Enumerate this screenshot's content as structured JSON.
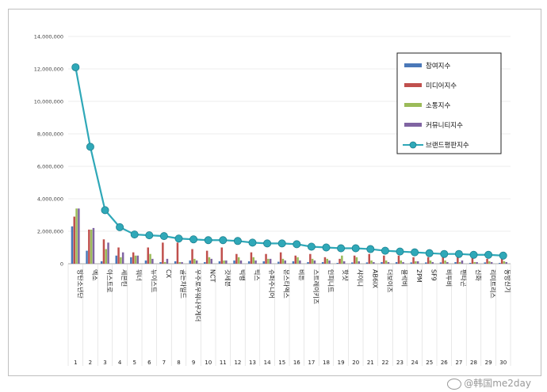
{
  "watermark": "@韩国me2day",
  "colors": {
    "participation": "#4a78b8",
    "media": "#c0504d",
    "communication": "#9bbb59",
    "community": "#8064a2",
    "brand": "#2fa8b8"
  },
  "chart_data": {
    "type": "bar",
    "title": "",
    "xlabel": "",
    "ylabel": "",
    "ylim": [
      0,
      14000000
    ],
    "yticks": [
      "0",
      "2,000,000",
      "4,000,000",
      "6,000,000",
      "8,000,000",
      "10,000,000",
      "12,000,000",
      "14,000,000"
    ],
    "categories": [
      "방탄소년단",
      "엑소",
      "아스트로",
      "세븐틴",
      "워너",
      "뉴이스트",
      "CX",
      "골든차일드",
      "우주로우워나우게더",
      "NCT",
      "갓세븐",
      "빅뱅",
      "빅스",
      "슈퍼주니어",
      "몬스타엑스",
      "비튼",
      "스트레이키즈",
      "인피니트",
      "핫샷",
      "샤이니",
      "AB6IX",
      "더보이즈",
      "블락비",
      "2PM",
      "SF9",
      "비투비",
      "펜타곤",
      "신화",
      "리미트리스",
      "동방신기"
    ],
    "indices": [
      "1",
      "2",
      "3",
      "4",
      "5",
      "6",
      "7",
      "8",
      "9",
      "10",
      "11",
      "12",
      "13",
      "14",
      "15",
      "16",
      "17",
      "18",
      "19",
      "20",
      "21",
      "22",
      "23",
      "24",
      "25",
      "26",
      "27",
      "28",
      "29",
      "30"
    ],
    "legend_position": "top-right",
    "series": [
      {
        "name": "참여지수",
        "type": "bar",
        "values": [
          2300000,
          800000,
          150000,
          500000,
          400000,
          200000,
          100000,
          150000,
          200000,
          100000,
          150000,
          200000,
          150000,
          150000,
          120000,
          150000,
          100000,
          100000,
          50000,
          80000,
          80000,
          100000,
          100000,
          80000,
          80000,
          80000,
          100000,
          50000,
          80000,
          50000
        ]
      },
      {
        "name": "미디어지수",
        "type": "bar",
        "values": [
          2900000,
          2100000,
          1500000,
          1000000,
          700000,
          1000000,
          1300000,
          1300000,
          900000,
          800000,
          1000000,
          600000,
          700000,
          600000,
          700000,
          500000,
          600000,
          400000,
          300000,
          500000,
          600000,
          500000,
          500000,
          400000,
          400000,
          400000,
          400000,
          400000,
          300000,
          300000
        ]
      },
      {
        "name": "소통지수",
        "type": "bar",
        "values": [
          3400000,
          2100000,
          900000,
          400000,
          500000,
          600000,
          100000,
          100000,
          300000,
          400000,
          200000,
          400000,
          400000,
          300000,
          300000,
          400000,
          300000,
          300000,
          500000,
          400000,
          200000,
          200000,
          200000,
          150000,
          200000,
          200000,
          100000,
          100000,
          150000,
          150000
        ]
      },
      {
        "name": "커뮤니티지수",
        "type": "bar",
        "values": [
          3400000,
          2200000,
          1300000,
          700000,
          500000,
          300000,
          300000,
          100000,
          200000,
          300000,
          200000,
          200000,
          200000,
          300000,
          200000,
          200000,
          200000,
          200000,
          150000,
          150000,
          100000,
          100000,
          100000,
          150000,
          100000,
          100000,
          200000,
          100000,
          100000,
          100000
        ]
      },
      {
        "name": "브랜드평판지수",
        "type": "line",
        "values": [
          12100000,
          7200000,
          3300000,
          2250000,
          1800000,
          1750000,
          1700000,
          1550000,
          1500000,
          1450000,
          1450000,
          1400000,
          1300000,
          1250000,
          1250000,
          1200000,
          1050000,
          1000000,
          950000,
          950000,
          900000,
          800000,
          750000,
          700000,
          650000,
          600000,
          600000,
          550000,
          550000,
          500000
        ]
      }
    ]
  }
}
